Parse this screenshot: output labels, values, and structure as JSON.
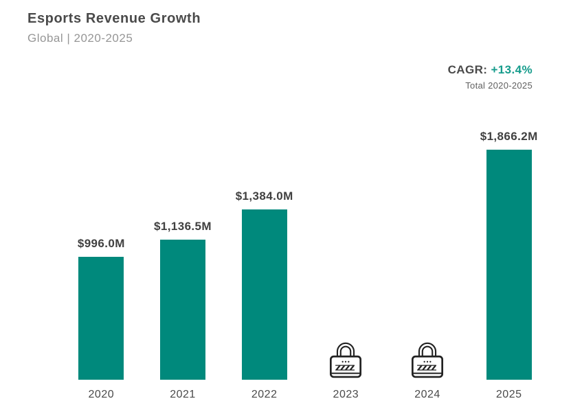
{
  "header": {
    "title": "Esports Revenue Growth",
    "subtitle": "Global | 2020-2025"
  },
  "cagr": {
    "label": "CAGR:",
    "value": "+13.4%",
    "note": "Total 2020-2025"
  },
  "colors": {
    "bar": "#00897c",
    "accent_text": "#169c8c",
    "title_text": "#4a4a4a",
    "subtitle_text": "#969696",
    "lock_stroke": "#222222"
  },
  "chart_data": {
    "type": "bar",
    "title": "Esports Revenue Growth",
    "subtitle": "Global | 2020-2025",
    "unit": "$M",
    "categories": [
      "2020",
      "2021",
      "2022",
      "2023",
      "2024",
      "2025"
    ],
    "values": [
      996.0,
      1136.5,
      1384.0,
      null,
      null,
      1866.2
    ],
    "value_labels": [
      "$996.0M",
      "$1,136.5M",
      "$1,384.0M",
      "",
      "",
      "$1,866.2M"
    ],
    "locked": [
      false,
      false,
      false,
      true,
      true,
      false
    ],
    "locked_icon": "padlock-icon",
    "ylim": [
      0,
      1866.2
    ],
    "grid": false,
    "legend": "none",
    "annotations": [
      "CAGR: +13.4%",
      "Total 2020-2025"
    ]
  }
}
